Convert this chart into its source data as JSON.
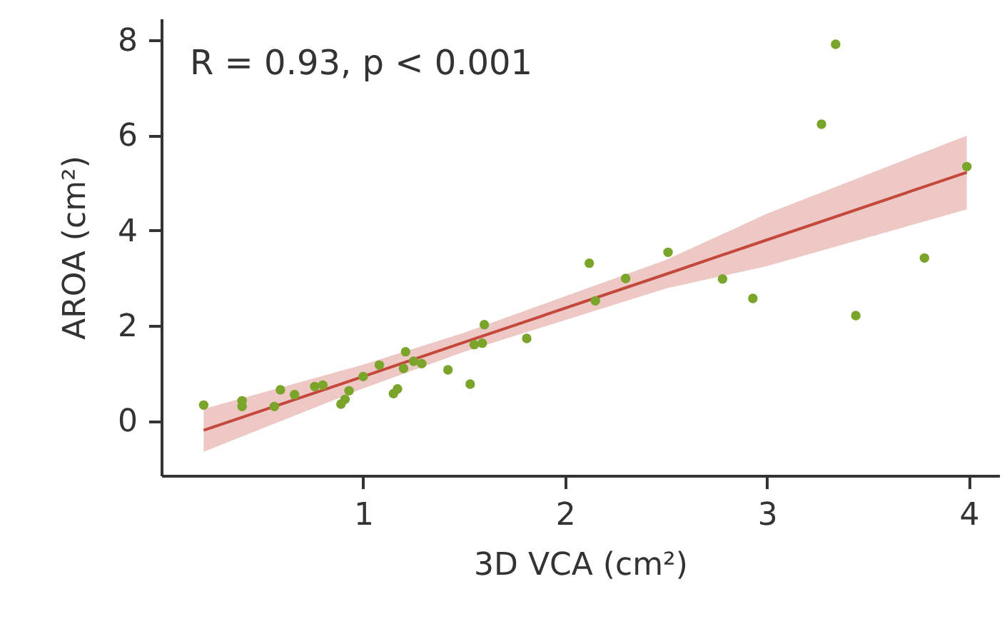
{
  "chart_data": {
    "type": "scatter",
    "xlabel": "3D VCA (cm²)",
    "ylabel": "AROA (cm²)",
    "annotations": [
      "R = 0.93, p < 0.001"
    ],
    "xlim": [
      0,
      4.15
    ],
    "ylim": [
      -1.15,
      8.45
    ],
    "xticks": [
      1,
      2,
      3,
      4
    ],
    "yticks": [
      0,
      2,
      4,
      6,
      8
    ],
    "grid": false,
    "series": [
      {
        "marker": "circle",
        "color": "#7aa52a",
        "x": [
          0.21,
          0.4,
          0.4,
          0.56,
          0.59,
          0.66,
          0.76,
          0.8,
          0.89,
          0.91,
          0.93,
          1.0,
          1.08,
          1.15,
          1.17,
          1.2,
          1.21,
          1.25,
          1.29,
          1.42,
          1.53,
          1.55,
          1.59,
          1.6,
          1.81,
          2.12,
          2.15,
          2.3,
          2.51,
          2.78,
          2.93,
          3.27,
          3.34,
          3.44,
          3.78,
          3.99
        ],
        "values": [
          0.33,
          0.42,
          0.3,
          0.3,
          0.65,
          0.55,
          0.72,
          0.75,
          0.35,
          0.45,
          0.63,
          0.93,
          1.17,
          0.57,
          0.67,
          1.1,
          1.45,
          1.25,
          1.2,
          1.07,
          0.77,
          1.6,
          1.63,
          2.02,
          1.73,
          3.31,
          2.52,
          2.99,
          3.54,
          2.98,
          2.57,
          6.23,
          7.91,
          2.21,
          3.42,
          5.34
        ]
      },
      {
        "type": "line",
        "color": "#c4493c",
        "line_style": "solid",
        "x": [
          0.21,
          1.0,
          1.5,
          2.5,
          3.0,
          3.99
        ],
        "values": [
          -0.2,
          0.93,
          1.65,
          3.08,
          3.8,
          5.22
        ],
        "lower": [
          -0.65,
          0.68,
          1.45,
          2.78,
          3.25,
          4.44
        ],
        "upper": [
          0.25,
          1.18,
          1.85,
          3.38,
          4.35,
          5.99
        ]
      }
    ]
  }
}
